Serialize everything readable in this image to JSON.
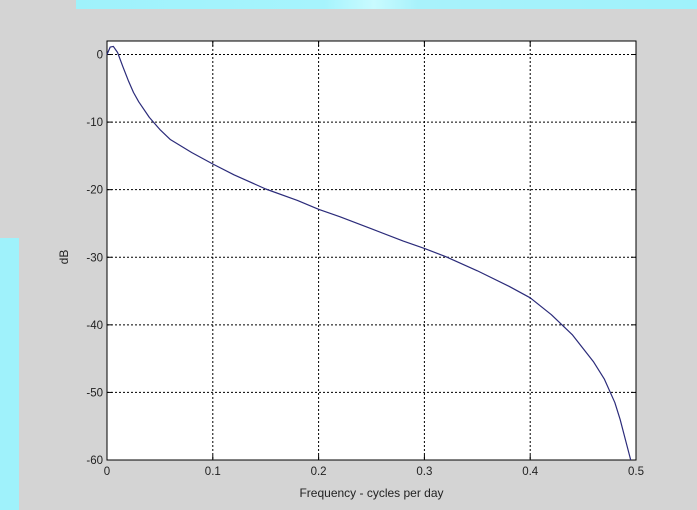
{
  "chart_data": {
    "type": "line",
    "title": "",
    "xlabel": "Frequency - cycles per day",
    "ylabel": "dB",
    "xlim": [
      0,
      0.5
    ],
    "ylim": [
      -60,
      2
    ],
    "xticks": [
      0,
      0.1,
      0.2,
      0.3,
      0.4,
      0.5
    ],
    "xtick_labels": [
      "0",
      "0.1",
      "0.2",
      "0.3",
      "0.4",
      "0.5"
    ],
    "yticks": [
      0,
      -10,
      -20,
      -30,
      -40,
      -50,
      -60
    ],
    "ytick_labels": [
      "0",
      "-10",
      "-20",
      "-30",
      "-40",
      "-50",
      "-60"
    ],
    "grid": true,
    "legend": "none",
    "line_color": "#2b2b7a",
    "series": [
      {
        "x": [
          0,
          0.003,
          0.006,
          0.01,
          0.015,
          0.02,
          0.025,
          0.03,
          0.04,
          0.05,
          0.06,
          0.08,
          0.1,
          0.12,
          0.15,
          0.18,
          0.2,
          0.22,
          0.25,
          0.28,
          0.3,
          0.32,
          0.35,
          0.38,
          0.4,
          0.42,
          0.44,
          0.46,
          0.47,
          0.48,
          0.485,
          0.49,
          0.495
        ],
        "y": [
          0,
          1.1,
          1.2,
          0.3,
          -1.8,
          -3.8,
          -5.6,
          -7.0,
          -9.3,
          -11.1,
          -12.6,
          -14.5,
          -16.2,
          -17.8,
          -19.9,
          -21.6,
          -22.9,
          -24.0,
          -25.8,
          -27.6,
          -28.7,
          -29.9,
          -32.0,
          -34.3,
          -36.0,
          -38.5,
          -41.5,
          -45.5,
          -48.0,
          -51.5,
          -54.0,
          -57.0,
          -60.0
        ]
      }
    ]
  }
}
